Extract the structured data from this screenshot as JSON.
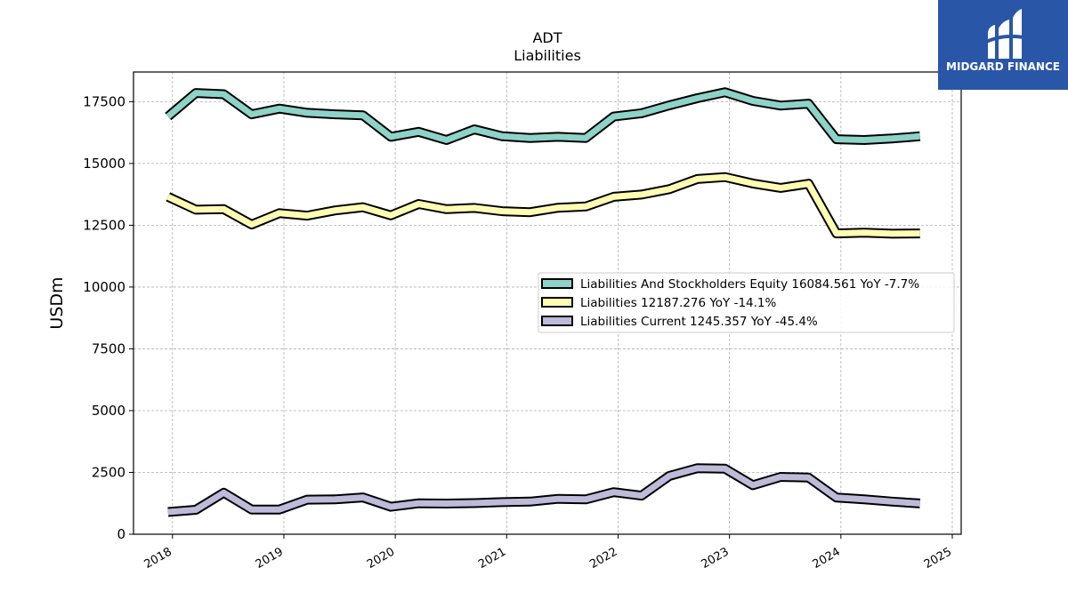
{
  "chart_data": {
    "type": "line",
    "title": "ADT",
    "subtitle": "Liabilities",
    "ylabel": "USDm",
    "xlabel": "",
    "ylim": [
      0,
      18700
    ],
    "xlim": [
      2017.65,
      2025.08
    ],
    "yticks": [
      0,
      2500,
      5000,
      7500,
      10000,
      12500,
      15000,
      17500
    ],
    "xticks": [
      "2018",
      "2019",
      "2020",
      "2021",
      "2022",
      "2023",
      "2024",
      "2025"
    ],
    "grid": true,
    "legend_position": "right",
    "x": [
      2017.96,
      2018.21,
      2018.46,
      2018.71,
      2018.96,
      2019.21,
      2019.46,
      2019.71,
      2019.96,
      2020.21,
      2020.46,
      2020.71,
      2020.96,
      2021.21,
      2021.46,
      2021.71,
      2021.96,
      2022.21,
      2022.46,
      2022.71,
      2022.96,
      2023.21,
      2023.46,
      2023.71,
      2023.96,
      2024.21,
      2024.46,
      2024.71
    ],
    "series": [
      {
        "name": "Liabilities And Stockholders Equity  16084.561 YoY -7.7%",
        "color": "#8dd3c7",
        "values": [
          16900,
          17850,
          17800,
          16990,
          17220,
          17050,
          16990,
          16950,
          16080,
          16280,
          15950,
          16380,
          16100,
          16030,
          16080,
          16030,
          16900,
          17030,
          17350,
          17640,
          17880,
          17530,
          17340,
          17420,
          15980,
          15950,
          16010,
          16100
        ]
      },
      {
        "name": "Liabilities  12187.276 YoY -14.1%",
        "color": "#ffffb3",
        "values": [
          13650,
          13130,
          13150,
          12530,
          12990,
          12890,
          13100,
          13230,
          12900,
          13360,
          13150,
          13200,
          13070,
          13030,
          13210,
          13260,
          13650,
          13740,
          13960,
          14370,
          14450,
          14190,
          14010,
          14180,
          12170,
          12200,
          12160,
          12170
        ]
      },
      {
        "name": "Liabilities Current  1245.357 YoY -45.4%",
        "color": "#bebada",
        "values": [
          900,
          990,
          1680,
          1000,
          1000,
          1400,
          1410,
          1490,
          1110,
          1250,
          1240,
          1260,
          1300,
          1320,
          1430,
          1410,
          1700,
          1560,
          2360,
          2670,
          2650,
          1980,
          2320,
          2290,
          1480,
          1410,
          1320,
          1245
        ]
      }
    ]
  },
  "logo": {
    "text": "MIDGARD FINANCE"
  }
}
